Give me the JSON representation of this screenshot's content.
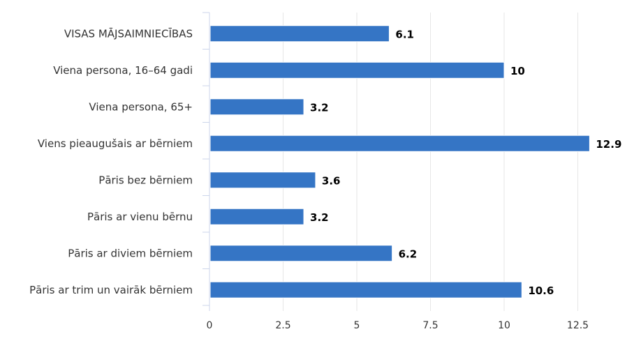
{
  "chart_data": {
    "type": "bar",
    "orientation": "horizontal",
    "title": "",
    "xlabel": "",
    "ylabel": "",
    "categories": [
      "VISAS MĀJSAIMNIECĪBAS",
      "Viena persona, 16–64 gadi",
      "Viena persona, 65+",
      "Viens pieaugušais ar bērniem",
      "Pāris bez bērniem",
      "Pāris ar vienu bērnu",
      "Pāris ar diviem bērniem",
      "Pāris ar trim un vairāk bērniem"
    ],
    "values": [
      6.1,
      10,
      3.2,
      12.9,
      3.6,
      3.2,
      6.2,
      10.6
    ],
    "data_labels": [
      "6.1",
      "10",
      "3.2",
      "12.9",
      "3.6",
      "3.2",
      "6.2",
      "10.6"
    ],
    "xlim": [
      0,
      14.5
    ],
    "ticks": [
      0,
      2.5,
      5,
      7.5,
      10,
      12.5
    ],
    "tick_labels": [
      "0",
      "2.5",
      "5",
      "7.5",
      "10",
      "12.5"
    ],
    "grid": true,
    "legend": "none",
    "bar_color": "#3575c5"
  }
}
